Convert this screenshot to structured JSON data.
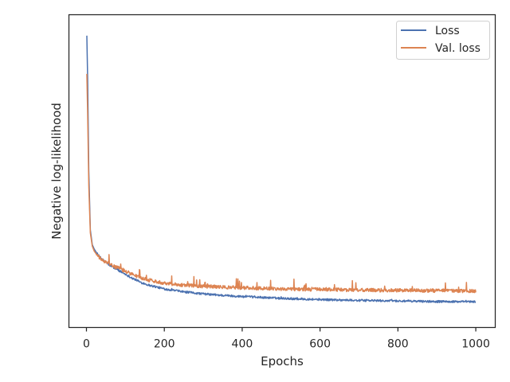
{
  "chart_data": {
    "type": "line",
    "title": "",
    "xlabel": "Epochs",
    "ylabel": "Negative log-likelihood",
    "xlim": [
      -45,
      1050
    ],
    "ylim": [
      0,
      1
    ],
    "y_tick_labels_shown": false,
    "x_ticks": [
      0,
      200,
      400,
      600,
      800,
      1000
    ],
    "x_tick_labels": [
      "0",
      "200",
      "400",
      "600",
      "800",
      "1000"
    ],
    "grid": false,
    "legend_position": "top-right",
    "series": [
      {
        "name": "Loss",
        "color": "#4c72b0",
        "noise": 0.0035,
        "spike_prob": 0.01,
        "spike_scale": 0.008,
        "x": [
          1,
          3,
          6,
          10,
          15,
          20,
          30,
          40,
          50,
          60,
          80,
          100,
          120,
          140,
          160,
          200,
          250,
          300,
          350,
          400,
          450,
          500,
          600,
          700,
          800,
          900,
          1000
        ],
        "y": [
          0.96,
          0.82,
          0.5,
          0.3,
          0.25,
          0.235,
          0.215,
          0.2,
          0.19,
          0.18,
          0.165,
          0.15,
          0.135,
          0.122,
          0.113,
          0.1,
          0.09,
          0.083,
          0.078,
          0.074,
          0.071,
          0.068,
          0.064,
          0.061,
          0.059,
          0.057,
          0.056
        ]
      },
      {
        "name": "Val. loss",
        "color": "#dd8452",
        "noise": 0.006,
        "spike_prob": 0.045,
        "spike_scale": 0.03,
        "x": [
          1,
          3,
          6,
          10,
          15,
          20,
          30,
          40,
          50,
          60,
          80,
          100,
          120,
          140,
          160,
          200,
          250,
          300,
          350,
          400,
          450,
          500,
          600,
          700,
          800,
          900,
          1000
        ],
        "y": [
          0.83,
          0.7,
          0.45,
          0.29,
          0.245,
          0.228,
          0.21,
          0.198,
          0.19,
          0.182,
          0.172,
          0.16,
          0.148,
          0.138,
          0.13,
          0.12,
          0.113,
          0.109,
          0.106,
          0.104,
          0.102,
          0.1,
          0.098,
          0.096,
          0.095,
          0.094,
          0.093
        ]
      }
    ]
  }
}
